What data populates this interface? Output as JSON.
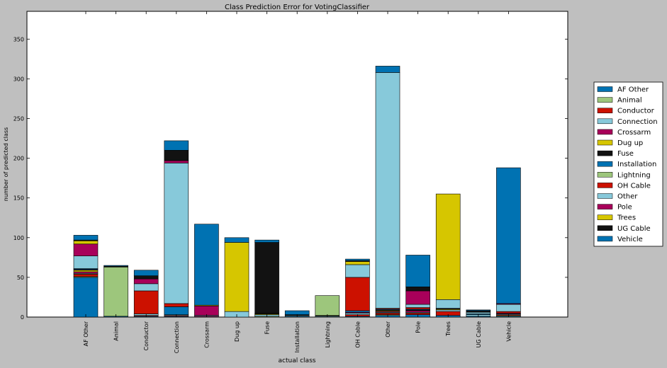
{
  "chart_data": {
    "type": "bar",
    "stacked": true,
    "title": "Class Prediction Error for VotingClassifier",
    "xlabel": "actual class",
    "ylabel": "number of predicted class",
    "ylim": [
      0,
      385
    ],
    "yticks": [
      0,
      50,
      100,
      150,
      200,
      250,
      300,
      350
    ],
    "legend_position": "right",
    "grid": false,
    "categories": [
      "AF Other",
      "Animal",
      "Conductor",
      "Connection",
      "Crossarm",
      "Dug up",
      "Fuse",
      "Installation",
      "Lightning",
      "OH Cable",
      "Other",
      "Pole",
      "Trees",
      "UG Cable",
      "Vehicle"
    ],
    "series": [
      {
        "name": "AF Other",
        "color": "#0072b2",
        "values": [
          50,
          1,
          1,
          1,
          0,
          0,
          0,
          1,
          0,
          1,
          2,
          3,
          2,
          1,
          1
        ]
      },
      {
        "name": "Animal",
        "color": "#9dc67c",
        "values": [
          1,
          62,
          0,
          0,
          0,
          0,
          1,
          0,
          0,
          0,
          1,
          0,
          0,
          0,
          1
        ]
      },
      {
        "name": "Conductor",
        "color": "#cc1100",
        "values": [
          3,
          0,
          1,
          1,
          0,
          0,
          0,
          0,
          0,
          2,
          2,
          2,
          5,
          0,
          1
        ]
      },
      {
        "name": "Connection",
        "color": "#87c9da",
        "values": [
          1,
          0,
          2,
          1,
          0,
          0,
          2,
          1,
          1,
          2,
          1,
          1,
          2,
          2,
          1
        ]
      },
      {
        "name": "Crossarm",
        "color": "#a8005a",
        "values": [
          2,
          0,
          0,
          0,
          1,
          0,
          0,
          0,
          0,
          1,
          1,
          2,
          0,
          0,
          1
        ]
      },
      {
        "name": "Dug up",
        "color": "#d6c600",
        "values": [
          2,
          0,
          0,
          0,
          0,
          0,
          1,
          0,
          0,
          0,
          1,
          0,
          1,
          0,
          0
        ]
      },
      {
        "name": "Fuse",
        "color": "#121212",
        "values": [
          1,
          1,
          0,
          0,
          0,
          0,
          1,
          1,
          1,
          0,
          1,
          1,
          1,
          0,
          0
        ]
      },
      {
        "name": "Installation",
        "color": "#0072b2",
        "values": [
          1,
          0,
          0,
          10,
          0,
          0,
          0,
          5,
          0,
          2,
          1,
          1,
          0,
          1,
          0
        ]
      },
      {
        "name": "Lightning",
        "color": "#9dc67c",
        "values": [
          0,
          0,
          0,
          0,
          0,
          0,
          0,
          0,
          25,
          0,
          0,
          0,
          0,
          0,
          0
        ]
      },
      {
        "name": "OH Cable",
        "color": "#cc1100",
        "values": [
          0,
          0,
          29,
          4,
          0,
          0,
          0,
          0,
          0,
          42,
          1,
          2,
          0,
          0,
          2
        ]
      },
      {
        "name": "Other",
        "color": "#87c9da",
        "values": [
          16,
          0,
          9,
          177,
          1,
          7,
          0,
          0,
          0,
          16,
          297,
          4,
          11,
          2,
          9
        ]
      },
      {
        "name": "Pole",
        "color": "#a8005a",
        "values": [
          15,
          0,
          6,
          3,
          12,
          0,
          0,
          0,
          0,
          0,
          0,
          17,
          0,
          0,
          1
        ]
      },
      {
        "name": "Trees",
        "color": "#d6c600",
        "values": [
          4,
          0,
          0,
          0,
          1,
          87,
          0,
          0,
          0,
          4,
          0,
          0,
          133,
          0,
          0
        ]
      },
      {
        "name": "UG Cable",
        "color": "#121212",
        "values": [
          1,
          0,
          4,
          13,
          0,
          0,
          89,
          0,
          0,
          1,
          0,
          5,
          0,
          2,
          0
        ]
      },
      {
        "name": "Vehicle",
        "color": "#0072b2",
        "values": [
          6,
          1,
          7,
          12,
          102,
          6,
          3,
          0,
          0,
          2,
          8,
          40,
          0,
          1,
          171
        ]
      }
    ]
  }
}
